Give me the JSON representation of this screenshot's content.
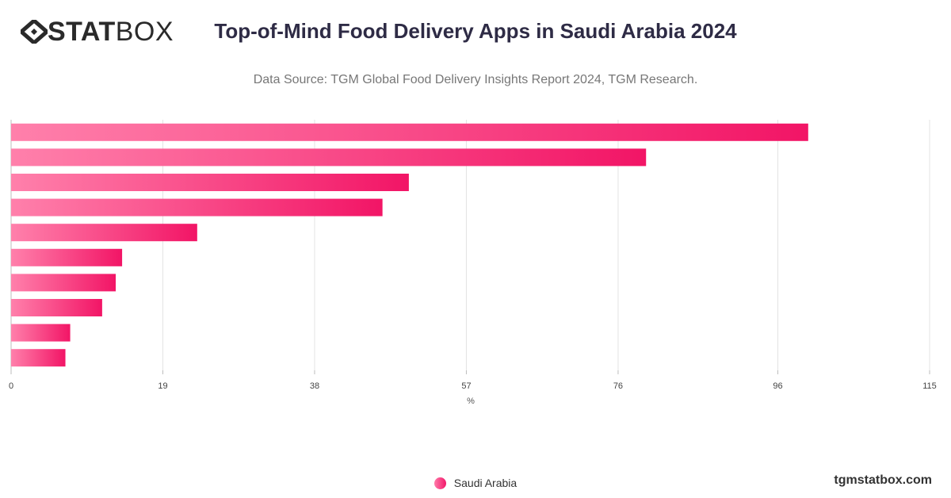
{
  "brand": {
    "logo_text_bold": "STAT",
    "logo_text_light": "BOX",
    "colors": {
      "text": "#2a2a2a"
    }
  },
  "header": {
    "title": "Top-of-Mind Food Delivery Apps in Saudi Arabia 2024",
    "subtitle": "Data Source: TGM Global Food Delivery Insights Report 2024, TGM Research."
  },
  "footer": {
    "site": "tgmstatbox.com"
  },
  "legend": {
    "items": [
      {
        "label": "Saudi Arabia",
        "color_start": "#ff7aa8",
        "color_end": "#f2186a"
      }
    ]
  },
  "chart_data": {
    "type": "bar",
    "orientation": "horizontal",
    "categories": [
      "",
      "",
      "",
      "",
      "",
      "",
      "",
      "",
      "",
      ""
    ],
    "series": [
      {
        "name": "Saudi Arabia",
        "values": [
          99.8,
          79.5,
          49.8,
          46.5,
          23.3,
          13.9,
          13.1,
          11.4,
          7.4,
          6.8
        ]
      }
    ],
    "xlabel": "%",
    "ylabel": "",
    "xlim": [
      0,
      115
    ],
    "xticks": [
      "0",
      "19",
      "38",
      "57",
      "76",
      "96",
      "115"
    ],
    "grid": true,
    "legend_position": "bottom-center",
    "colors": {
      "bar_start": "#ff80ab",
      "bar_end": "#f21566",
      "grid": "#e3e3e3",
      "axis": "#bdbdbd",
      "tick_text": "#444444"
    }
  }
}
